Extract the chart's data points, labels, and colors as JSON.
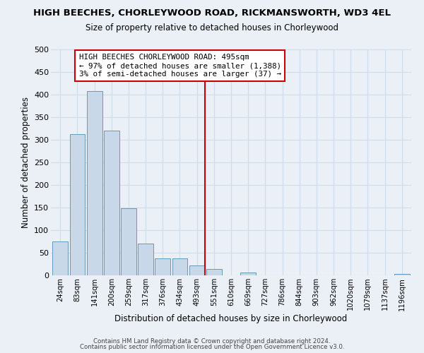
{
  "title": "HIGH BEECHES, CHORLEYWOOD ROAD, RICKMANSWORTH, WD3 4EL",
  "subtitle": "Size of property relative to detached houses in Chorleywood",
  "xlabel": "Distribution of detached houses by size in Chorleywood",
  "ylabel": "Number of detached properties",
  "footer_line1": "Contains HM Land Registry data © Crown copyright and database right 2024.",
  "footer_line2": "Contains public sector information licensed under the Open Government Licence v3.0.",
  "bar_labels": [
    "24sqm",
    "83sqm",
    "141sqm",
    "200sqm",
    "259sqm",
    "317sqm",
    "376sqm",
    "434sqm",
    "493sqm",
    "551sqm",
    "610sqm",
    "669sqm",
    "727sqm",
    "786sqm",
    "844sqm",
    "903sqm",
    "962sqm",
    "1020sqm",
    "1079sqm",
    "1137sqm",
    "1196sqm"
  ],
  "bar_heights": [
    75,
    312,
    408,
    320,
    148,
    70,
    37,
    37,
    22,
    14,
    0,
    7,
    0,
    0,
    0,
    0,
    0,
    0,
    0,
    0,
    3
  ],
  "bar_color": "#c8d8e8",
  "bar_edge_color": "#6699bb",
  "grid_color": "#ccddee",
  "vline_color": "#cc0000",
  "annotation_line1": "HIGH BEECHES CHORLEYWOOD ROAD: 495sqm",
  "annotation_line2": "← 97% of detached houses are smaller (1,388)",
  "annotation_line3": "3% of semi-detached houses are larger (37) →",
  "annotation_box_color": "#ffffff",
  "annotation_box_edge_color": "#cc0000",
  "ylim": [
    0,
    500
  ],
  "yticks": [
    0,
    50,
    100,
    150,
    200,
    250,
    300,
    350,
    400,
    450,
    500
  ],
  "background_color": "#eaf0f6",
  "title_fontsize": 9.5,
  "subtitle_fontsize": 8.5
}
